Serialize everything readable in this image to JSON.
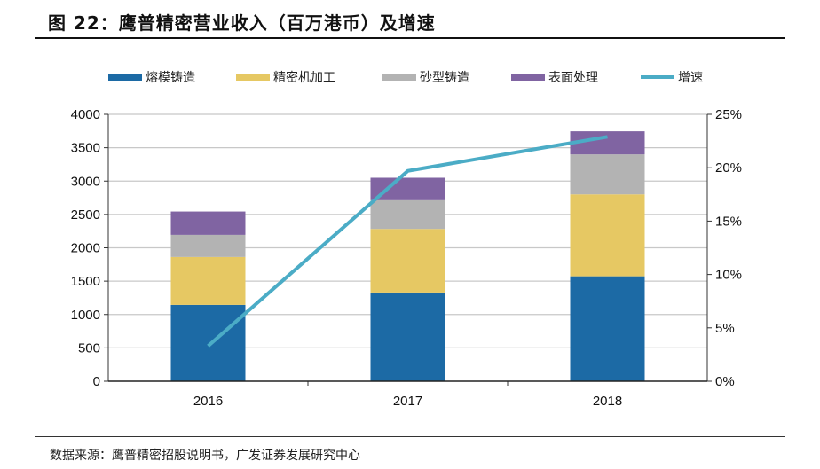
{
  "title": "图 22：鹰普精密营业收入（百万港币）及增速",
  "footer": "数据来源：鹰普精密招股说明书，广发证券发展研究中心",
  "chart_data": {
    "type": "bar",
    "stacked": true,
    "categories": [
      "2016",
      "2017",
      "2018"
    ],
    "series": [
      {
        "name": "熔模铸造",
        "color": "#1c6aa5",
        "values": [
          1144,
          1330,
          1573
        ]
      },
      {
        "name": "精密机加工",
        "color": "#e6c863",
        "values": [
          718,
          953,
          1228
        ]
      },
      {
        "name": "砂型铸造",
        "color": "#b3b3b3",
        "values": [
          332,
          430,
          599
        ]
      },
      {
        "name": "表面处理",
        "color": "#8064a2",
        "values": [
          350,
          337,
          346
        ]
      }
    ],
    "line_series": {
      "name": "增速",
      "color": "#4bacc6",
      "axis": "right",
      "values": [
        3.3,
        19.7,
        22.9
      ]
    },
    "ylim": [
      0,
      4000
    ],
    "yticks": [
      "0",
      "500",
      "1000",
      "1500",
      "2000",
      "2500",
      "3000",
      "3500",
      "4000"
    ],
    "y2lim": [
      0,
      25
    ],
    "y2ticks": [
      "0%",
      "5%",
      "10%",
      "15%",
      "20%",
      "25%"
    ],
    "grid": true,
    "legend": "top"
  }
}
